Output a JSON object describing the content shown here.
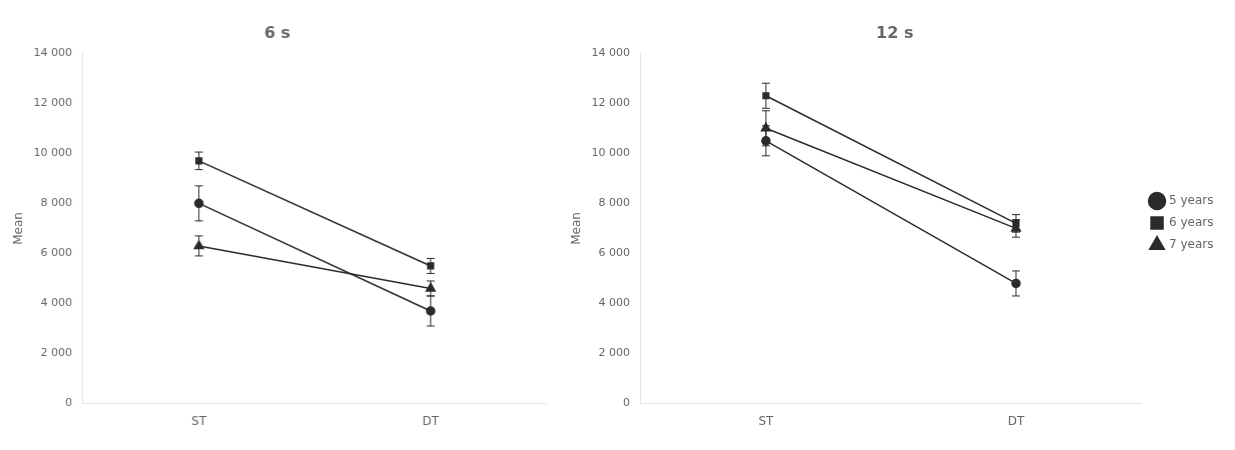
{
  "chart_data": [
    {
      "type": "line",
      "title": "6 s",
      "ylabel": "Mean",
      "categories": [
        "ST",
        "DT"
      ],
      "series": [
        {
          "name": "5 years",
          "color": "#2b2b2b",
          "marker": "circle",
          "values": [
            8000,
            3700
          ],
          "errors": [
            700,
            600
          ]
        },
        {
          "name": "6 years",
          "color": "#2b2b2b",
          "marker": "square",
          "values": [
            9700,
            5500
          ],
          "errors": [
            350,
            300
          ]
        },
        {
          "name": "7 years",
          "color": "#2b2b2b",
          "marker": "triangle",
          "values": [
            6300,
            4600
          ],
          "errors": [
            400,
            300
          ]
        }
      ],
      "ylim": [
        0,
        14000
      ],
      "yticks": [
        0,
        {
          "value": 2000,
          "label": "2 000"
        },
        {
          "value": 4000,
          "label": "4 000"
        },
        {
          "value": 6000,
          "label": "6 000"
        },
        {
          "value": 8000,
          "label": "8 000"
        },
        {
          "value": 10000,
          "label": "10 000"
        },
        {
          "value": 12000,
          "label": "12 000"
        },
        {
          "value": 14000,
          "label": "14 000"
        }
      ],
      "grid": false
    },
    {
      "type": "line",
      "title": "12 s",
      "ylabel": "Mean",
      "categories": [
        "ST",
        "DT"
      ],
      "series": [
        {
          "name": "5 years",
          "color": "#2b2b2b",
          "marker": "circle",
          "values": [
            10500,
            4800
          ],
          "errors": [
            600,
            500
          ]
        },
        {
          "name": "6 years",
          "color": "#2b2b2b",
          "marker": "square",
          "values": [
            12300,
            7200
          ],
          "errors": [
            500,
            350
          ]
        },
        {
          "name": "7 years",
          "color": "#2b2b2b",
          "marker": "triangle",
          "values": [
            11000,
            7000
          ],
          "errors": [
            700,
            350
          ]
        }
      ],
      "ylim": [
        0,
        14000
      ],
      "yticks": [
        0,
        {
          "value": 2000,
          "label": "2 000"
        },
        {
          "value": 4000,
          "label": "4 000"
        },
        {
          "value": 6000,
          "label": "6 000"
        },
        {
          "value": 8000,
          "label": "8 000"
        },
        {
          "value": 10000,
          "label": "10 000"
        },
        {
          "value": 12000,
          "label": "12 000"
        },
        {
          "value": 14000,
          "label": "14 000"
        }
      ],
      "grid": false,
      "legend": "right"
    }
  ]
}
